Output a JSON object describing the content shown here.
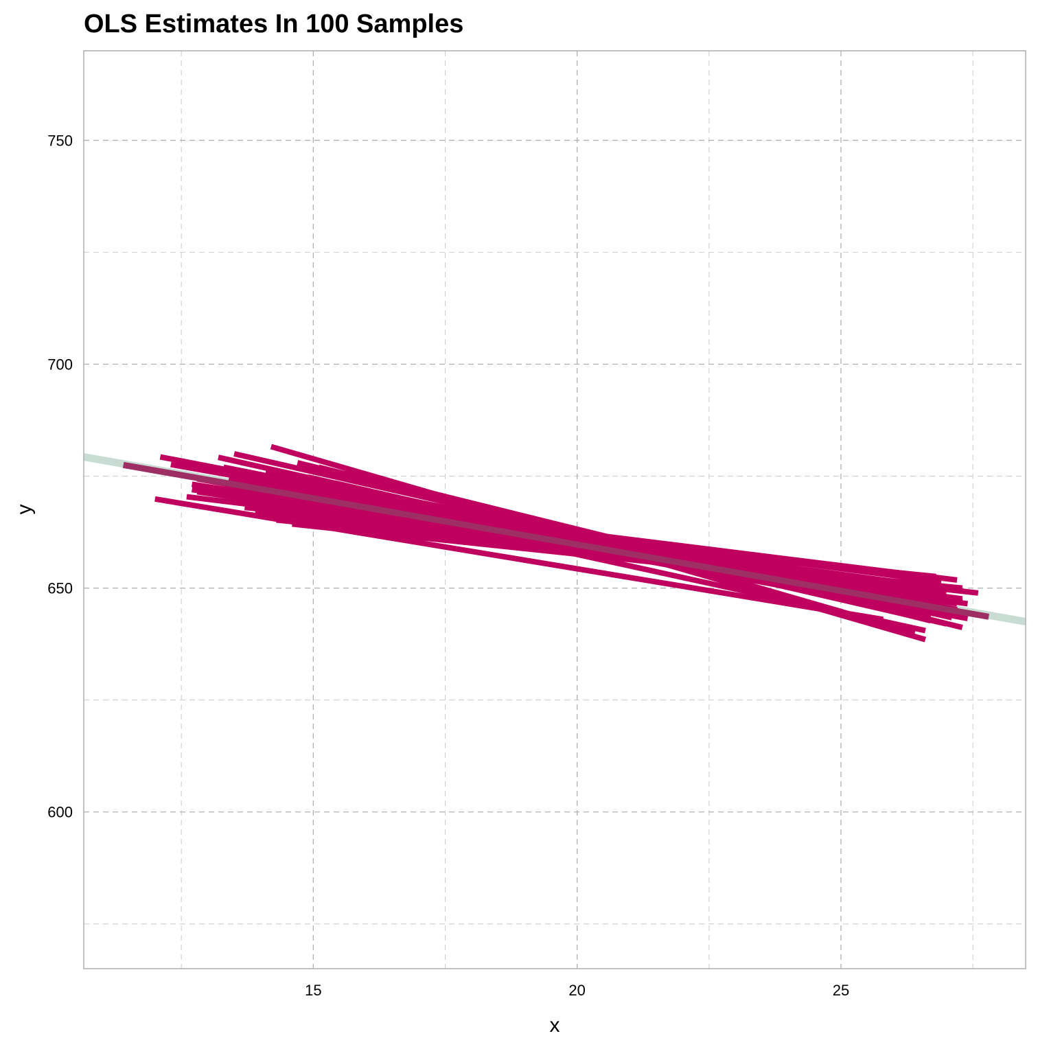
{
  "chart_data": {
    "type": "line",
    "title": "OLS Estimates In 100 Samples",
    "xlabel": "x",
    "ylabel": "y",
    "xlim": [
      10.65,
      28.5
    ],
    "ylim": [
      565,
      770
    ],
    "x_ticks": [
      15,
      20,
      25
    ],
    "y_ticks": [
      600,
      650,
      700,
      750
    ],
    "x_minor": [
      12.5,
      17.5,
      22.5,
      27.5
    ],
    "y_minor": [
      575,
      625,
      675,
      725
    ],
    "grid": true,
    "colors": {
      "estimates": "#c0005f",
      "population": "#c8dcd4",
      "mean_estimate": "#9e2f64"
    },
    "population_line": {
      "x": [
        10.65,
        28.5
      ],
      "y": [
        679.3,
        642.5
      ]
    },
    "mean_estimate_line": {
      "x": [
        11.4,
        27.8
      ],
      "y": [
        677.5,
        643.6
      ]
    },
    "estimate_lines": [
      {
        "x": [
          12.0,
          25.8
        ],
        "y": [
          669.9,
          643.0
        ]
      },
      {
        "x": [
          12.1,
          26.3
        ],
        "y": [
          679.3,
          647.0
        ]
      },
      {
        "x": [
          12.3,
          27.2
        ],
        "y": [
          677.6,
          646.5
        ]
      },
      {
        "x": [
          12.6,
          26.5
        ],
        "y": [
          670.4,
          650.5
        ]
      },
      {
        "x": [
          12.7,
          26.8
        ],
        "y": [
          673.2,
          646.9
        ]
      },
      {
        "x": [
          12.7,
          27.3
        ],
        "y": [
          672.0,
          647.0
        ]
      },
      {
        "x": [
          12.8,
          26.9
        ],
        "y": [
          674.4,
          644.0
        ]
      },
      {
        "x": [
          12.8,
          27.4
        ],
        "y": [
          671.5,
          646.5
        ]
      },
      {
        "x": [
          13.0,
          26.4
        ],
        "y": [
          676.6,
          648.0
        ]
      },
      {
        "x": [
          13.1,
          27.0
        ],
        "y": [
          673.8,
          645.6
        ]
      },
      {
        "x": [
          13.2,
          26.7
        ],
        "y": [
          679.2,
          643.5
        ]
      },
      {
        "x": [
          13.3,
          27.4
        ],
        "y": [
          677.0,
          644.0
        ]
      },
      {
        "x": [
          13.4,
          27.4
        ],
        "y": [
          674.5,
          643.2
        ]
      },
      {
        "x": [
          13.5,
          27.1
        ],
        "y": [
          680.0,
          643.4
        ]
      },
      {
        "x": [
          13.5,
          26.6
        ],
        "y": [
          673.7,
          650.0
        ]
      },
      {
        "x": [
          13.6,
          26.3
        ],
        "y": [
          675.2,
          646.3
        ]
      },
      {
        "x": [
          13.7,
          26.8
        ],
        "y": [
          668.0,
          652.6
        ]
      },
      {
        "x": [
          13.8,
          26.5
        ],
        "y": [
          671.5,
          649.7
        ]
      },
      {
        "x": [
          13.9,
          27.6
        ],
        "y": [
          667.0,
          648.9
        ]
      },
      {
        "x": [
          14.0,
          26.6
        ],
        "y": [
          673.0,
          640.5
        ]
      },
      {
        "x": [
          14.1,
          27.2
        ],
        "y": [
          676.0,
          645.2
        ]
      },
      {
        "x": [
          14.2,
          26.4
        ],
        "y": [
          681.6,
          640.0
        ]
      },
      {
        "x": [
          14.3,
          27.3
        ],
        "y": [
          665.2,
          650.0
        ]
      },
      {
        "x": [
          14.4,
          26.2
        ],
        "y": [
          672.8,
          647.5
        ]
      },
      {
        "x": [
          14.5,
          26.9
        ],
        "y": [
          670.6,
          651.4
        ]
      },
      {
        "x": [
          14.6,
          26.5
        ],
        "y": [
          664.3,
          649.5
        ]
      },
      {
        "x": [
          14.7,
          26.7
        ],
        "y": [
          678.0,
          642.7
        ]
      },
      {
        "x": [
          14.8,
          27.0
        ],
        "y": [
          668.6,
          649.2
        ]
      },
      {
        "x": [
          14.9,
          26.0
        ],
        "y": [
          674.8,
          645.0
        ]
      },
      {
        "x": [
          15.0,
          26.8
        ],
        "y": [
          666.5,
          650.0
        ]
      },
      {
        "x": [
          15.1,
          27.3
        ],
        "y": [
          677.0,
          641.2
        ]
      },
      {
        "x": [
          15.2,
          26.6
        ],
        "y": [
          670.0,
          645.5
        ]
      },
      {
        "x": [
          15.4,
          27.0
        ],
        "y": [
          673.5,
          642.0
        ]
      },
      {
        "x": [
          15.5,
          26.3
        ],
        "y": [
          668.2,
          651.0
        ]
      },
      {
        "x": [
          15.6,
          26.7
        ],
        "y": [
          676.0,
          643.6
        ]
      },
      {
        "x": [
          15.8,
          26.9
        ],
        "y": [
          671.2,
          648.0
        ]
      },
      {
        "x": [
          16.0,
          27.3
        ],
        "y": [
          665.0,
          647.6
        ]
      },
      {
        "x": [
          16.2,
          26.6
        ],
        "y": [
          674.0,
          638.5
        ]
      },
      {
        "x": [
          16.4,
          27.2
        ],
        "y": [
          667.6,
          651.8
        ]
      },
      {
        "x": [
          16.6,
          26.5
        ],
        "y": [
          672.5,
          644.8
        ]
      }
    ]
  }
}
